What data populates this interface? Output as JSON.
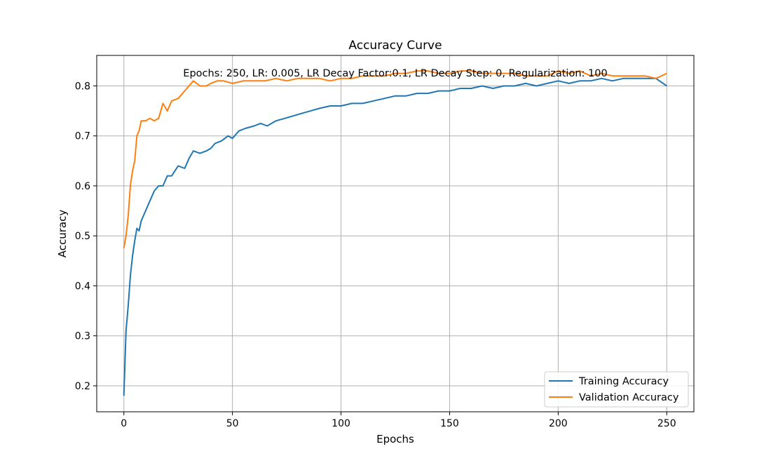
{
  "chart_data": {
    "type": "line",
    "title": "Accuracy Curve",
    "xlabel": "Epochs",
    "ylabel": "Accuracy",
    "annotation": "Epochs: 250, LR: 0.005, LR Decay Factor:0.1, LR Decay Step: 0, Regularization: 100",
    "xlim": [
      -12.5,
      262.5
    ],
    "ylim": [
      0.148,
      0.861
    ],
    "xticks": [
      0,
      50,
      100,
      150,
      200,
      250
    ],
    "yticks": [
      0.2,
      0.3,
      0.4,
      0.5,
      0.6,
      0.7,
      0.8
    ],
    "grid": true,
    "legend_position": "lower-right",
    "series": [
      {
        "name": "Training Accuracy",
        "color": "#1f77b4",
        "x": [
          0,
          1,
          2,
          3,
          4,
          5,
          6,
          7,
          8,
          10,
          12,
          14,
          16,
          18,
          20,
          22,
          25,
          28,
          30,
          32,
          35,
          38,
          40,
          42,
          45,
          48,
          50,
          53,
          56,
          60,
          63,
          66,
          70,
          74,
          78,
          82,
          86,
          90,
          95,
          100,
          105,
          110,
          115,
          120,
          125,
          130,
          135,
          140,
          145,
          150,
          155,
          160,
          165,
          170,
          175,
          180,
          185,
          190,
          195,
          200,
          205,
          210,
          215,
          220,
          225,
          230,
          235,
          240,
          245,
          250
        ],
        "y": [
          0.18,
          0.31,
          0.36,
          0.42,
          0.46,
          0.49,
          0.515,
          0.51,
          0.53,
          0.55,
          0.57,
          0.59,
          0.6,
          0.6,
          0.62,
          0.62,
          0.64,
          0.635,
          0.655,
          0.67,
          0.665,
          0.67,
          0.675,
          0.685,
          0.69,
          0.7,
          0.695,
          0.71,
          0.715,
          0.72,
          0.725,
          0.72,
          0.73,
          0.735,
          0.74,
          0.745,
          0.75,
          0.755,
          0.76,
          0.76,
          0.765,
          0.765,
          0.77,
          0.775,
          0.78,
          0.78,
          0.785,
          0.785,
          0.79,
          0.79,
          0.795,
          0.795,
          0.8,
          0.795,
          0.8,
          0.8,
          0.805,
          0.8,
          0.805,
          0.81,
          0.805,
          0.81,
          0.81,
          0.815,
          0.81,
          0.815,
          0.815,
          0.815,
          0.815,
          0.8
        ]
      },
      {
        "name": "Validation Accuracy",
        "color": "#ff7f0e",
        "x": [
          0,
          1,
          2,
          3,
          4,
          5,
          6,
          7,
          8,
          10,
          12,
          14,
          16,
          18,
          20,
          22,
          25,
          28,
          30,
          32,
          35,
          38,
          40,
          43,
          46,
          50,
          55,
          60,
          65,
          70,
          75,
          80,
          85,
          90,
          95,
          100,
          105,
          110,
          115,
          120,
          125,
          130,
          135,
          140,
          145,
          150,
          155,
          160,
          165,
          170,
          175,
          180,
          185,
          190,
          195,
          200,
          205,
          210,
          215,
          220,
          225,
          230,
          235,
          240,
          245,
          250
        ],
        "y": [
          0.475,
          0.5,
          0.54,
          0.6,
          0.63,
          0.65,
          0.7,
          0.71,
          0.73,
          0.73,
          0.735,
          0.73,
          0.735,
          0.765,
          0.75,
          0.77,
          0.775,
          0.79,
          0.8,
          0.81,
          0.8,
          0.8,
          0.805,
          0.81,
          0.81,
          0.805,
          0.81,
          0.81,
          0.81,
          0.815,
          0.81,
          0.815,
          0.815,
          0.815,
          0.81,
          0.815,
          0.815,
          0.82,
          0.82,
          0.82,
          0.825,
          0.825,
          0.83,
          0.83,
          0.825,
          0.825,
          0.83,
          0.83,
          0.825,
          0.825,
          0.825,
          0.825,
          0.82,
          0.82,
          0.82,
          0.83,
          0.825,
          0.83,
          0.82,
          0.825,
          0.82,
          0.82,
          0.82,
          0.82,
          0.815,
          0.825
        ]
      }
    ]
  }
}
